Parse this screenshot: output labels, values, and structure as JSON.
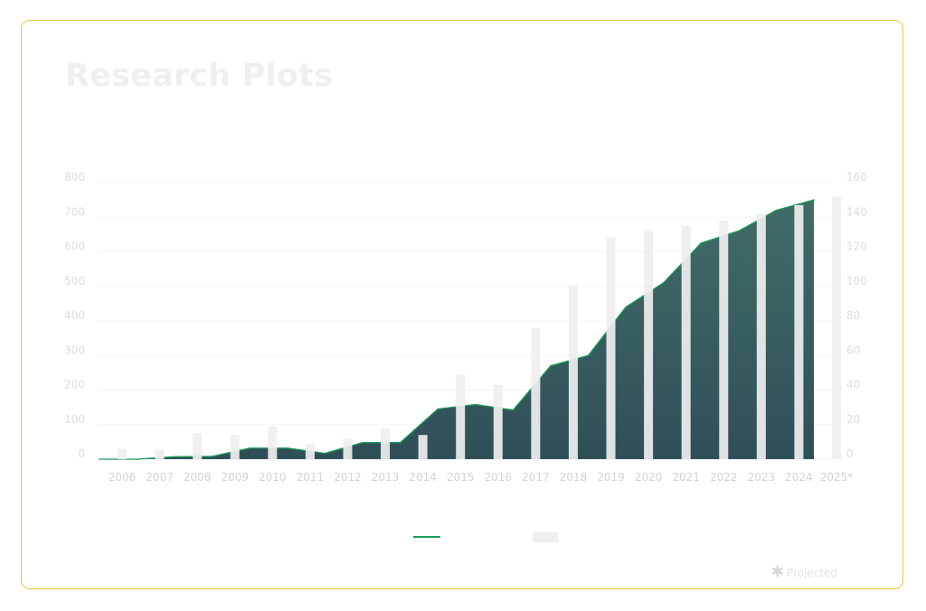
{
  "page": {
    "title": "Research Plots"
  },
  "chart_data": {
    "type": "area",
    "categories": [
      "2006",
      "2007",
      "2008",
      "2009",
      "2010",
      "2011",
      "2012",
      "2013",
      "2014",
      "2015",
      "2016",
      "2017",
      "2018",
      "2019",
      "2020",
      "2021",
      "2022",
      "2023",
      "2024",
      "2025*"
    ],
    "series": [
      {
        "kind": "area",
        "axis": "left",
        "values": [
          0,
          0,
          7,
          8,
          32,
          32,
          17,
          48,
          48,
          145,
          158,
          142,
          270,
          300,
          440,
          510,
          625,
          660,
          720,
          750
        ]
      },
      {
        "kind": "bar",
        "axis": "right",
        "values": [
          6,
          6,
          15,
          14,
          19,
          9,
          12,
          18,
          14,
          49,
          43,
          76,
          100,
          128,
          132,
          135,
          138,
          142,
          147,
          152
        ]
      }
    ],
    "left_axis": {
      "ticks": [
        "0",
        "100",
        "200",
        "300",
        "400",
        "500",
        "600",
        "700",
        "800"
      ],
      "range": [
        0,
        800
      ]
    },
    "right_axis": {
      "ticks": [
        "0",
        "20",
        "40",
        "60",
        "80",
        "100",
        "120",
        "140",
        "160"
      ],
      "range": [
        0,
        160
      ]
    },
    "grid": true,
    "legend_position": "bottom-center",
    "note": "Projected",
    "colors": {
      "area_top": "#416c66",
      "area_bottom": "#2f4f58",
      "area_line": "#1a9c5a",
      "bar": "#efefef",
      "border": "#f0c33c"
    }
  }
}
